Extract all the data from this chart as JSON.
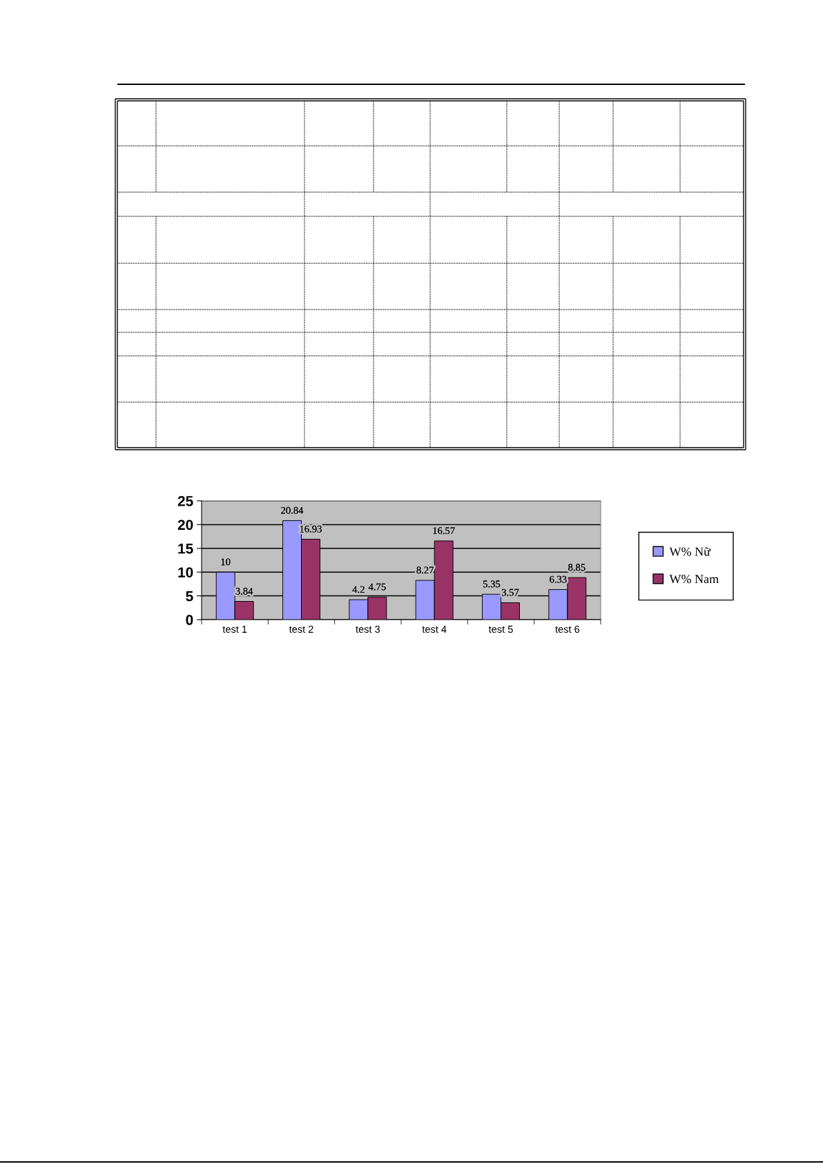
{
  "chart_data": {
    "type": "bar",
    "categories": [
      "test 1",
      "test 2",
      "test 3",
      "test 4",
      "test 5",
      "test 6"
    ],
    "series": [
      {
        "name": "W% Nữ",
        "color": "#9999ff",
        "values": [
          10,
          20.84,
          4.2,
          8.27,
          5.35,
          6.33
        ]
      },
      {
        "name": "W% Nam",
        "color": "#993366",
        "values": [
          3.84,
          16.93,
          4.75,
          16.57,
          3.57,
          8.85
        ]
      }
    ],
    "ylim": [
      0,
      25
    ],
    "yticks": [
      0,
      5,
      10,
      15,
      20,
      25
    ],
    "grid": "y",
    "legend": "right",
    "data_labels": true
  }
}
